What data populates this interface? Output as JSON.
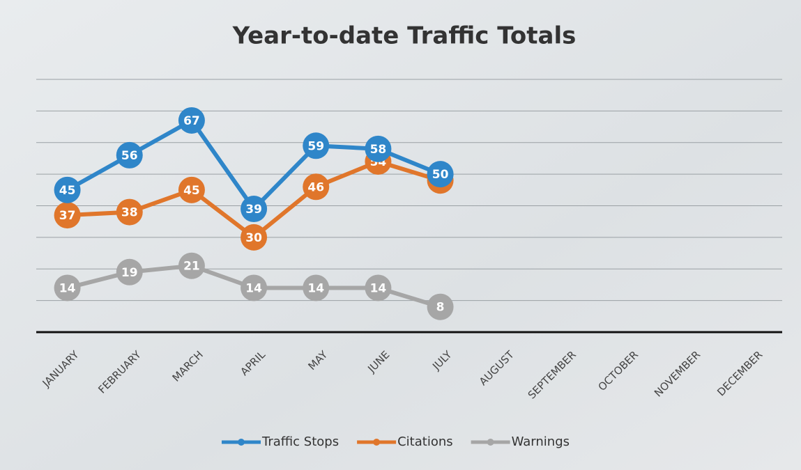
{
  "chart_data": {
    "type": "line",
    "title": "Year-to-date Traffic Totals",
    "categories": [
      "JANUARY",
      "FEBRUARY",
      "MARCH",
      "APRIL",
      "MAY",
      "JUNE",
      "JULY",
      "AUGUST",
      "SEPTEMBER",
      "OCTOBER",
      "NOVEMBER",
      "DECEMBER"
    ],
    "series": [
      {
        "name": "Traffic Stops",
        "color": "#2f86c9",
        "values": [
          45,
          56,
          67,
          39,
          59,
          58,
          50,
          null,
          null,
          null,
          null,
          null
        ]
      },
      {
        "name": "Citations",
        "color": "#e0762b",
        "values": [
          37,
          38,
          45,
          30,
          46,
          54,
          48,
          null,
          null,
          null,
          null,
          null
        ]
      },
      {
        "name": "Warnings",
        "color": "#a6a6a6",
        "values": [
          14,
          19,
          21,
          14,
          14,
          14,
          8,
          null,
          null,
          null,
          null,
          null
        ]
      }
    ],
    "ylim": [
      0,
      80
    ],
    "yticks": [
      0,
      10,
      20,
      30,
      40,
      50,
      60,
      70,
      80
    ],
    "grid": true,
    "legend": "bottom"
  }
}
